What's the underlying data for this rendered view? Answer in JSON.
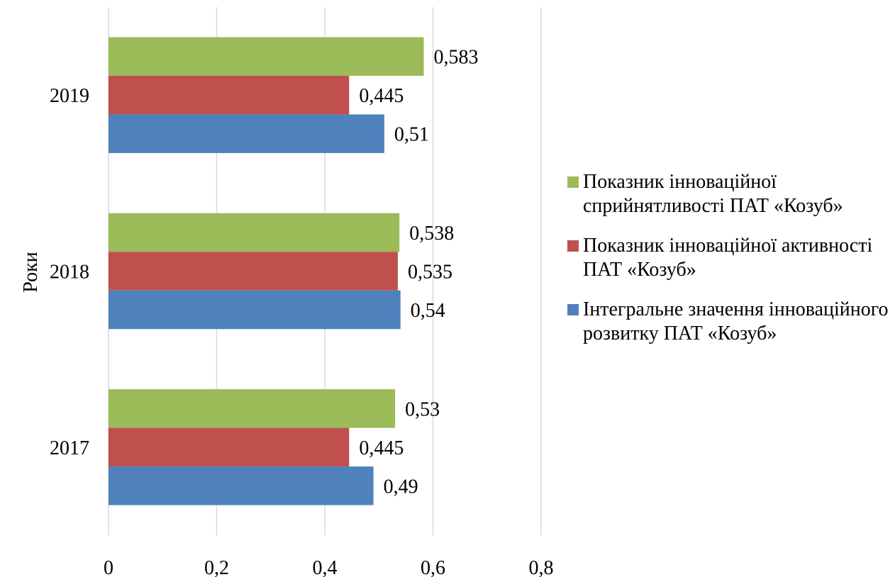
{
  "chart_data": {
    "type": "bar",
    "orientation": "horizontal",
    "categories": [
      "2017",
      "2018",
      "2019"
    ],
    "series": [
      {
        "name": "Інтегральне значення інноваційного розвитку ПАТ «Козуб»",
        "color": "#4f81bd",
        "values": [
          0.49,
          0.54,
          0.51
        ],
        "labels": [
          "0,49",
          "0,54",
          "0,51"
        ]
      },
      {
        "name": "Показник інноваційної активності ПАТ «Козуб»",
        "color": "#c0504d",
        "values": [
          0.445,
          0.535,
          0.445
        ],
        "labels": [
          "0,445",
          "0,535",
          "0,445"
        ]
      },
      {
        "name": "Показник інноваційної сприйнятливості ПАТ «Козуб»",
        "color": "#9bbb59",
        "values": [
          0.53,
          0.538,
          0.583
        ],
        "labels": [
          "0,53",
          "0,538",
          "0,583"
        ]
      }
    ],
    "xlim": [
      0,
      0.8
    ],
    "xticks": [
      0,
      0.2,
      0.4,
      0.6,
      0.8
    ],
    "xtick_labels": [
      "0",
      "0,2",
      "0,4",
      "0,6",
      "0,8"
    ],
    "ylabel": "Роки",
    "xlabel": "",
    "title": "",
    "grid": true,
    "legend_position": "right"
  },
  "legend": {
    "items": [
      {
        "label": "Показник інноваційної сприйнятливості ПАТ «Козуб»",
        "color": "#9bbb59"
      },
      {
        "label": "Показник інноваційної активності ПАТ «Козуб»",
        "color": "#c0504d"
      },
      {
        "label": "Інтегральне значення інноваційного розвитку ПАТ «Козуб»",
        "color": "#4f81bd"
      }
    ]
  }
}
